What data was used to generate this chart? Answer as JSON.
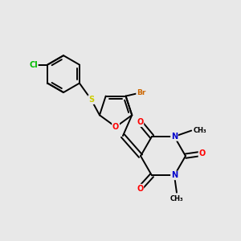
{
  "bg_color": "#e8e8e8",
  "bond_color": "#000000",
  "atom_colors": {
    "O": "#ff0000",
    "N": "#0000cc",
    "S": "#cccc00",
    "Cl": "#00bb00",
    "Br": "#cc6600",
    "C": "#000000"
  }
}
